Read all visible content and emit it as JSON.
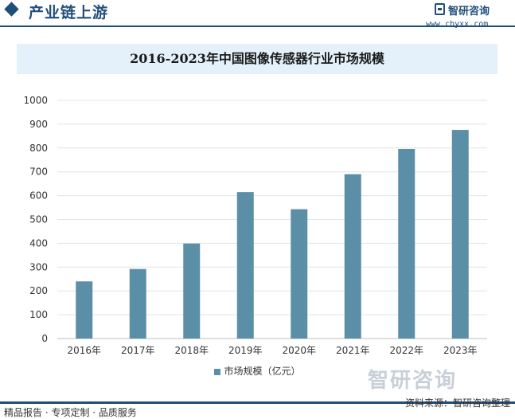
{
  "header": {
    "section_title": "产业链上游",
    "brand_name": "智研咨询",
    "brand_url": "www.chyxx.com"
  },
  "chart_data": {
    "type": "bar",
    "title": "2016-2023年中国图像传感器行业市场规模",
    "categories": [
      "2016年",
      "2017年",
      "2018年",
      "2019年",
      "2020年",
      "2021年",
      "2022年",
      "2023年"
    ],
    "series": [
      {
        "name": "市场规模（亿元）",
        "values": [
          240,
          292,
          399,
          615,
          543,
          690,
          796,
          876
        ]
      }
    ],
    "ylim": [
      0,
      1000
    ],
    "yticks": [
      0,
      100,
      200,
      300,
      400,
      500,
      600,
      700,
      800,
      900,
      1000
    ],
    "grid": true,
    "legend": "bottom",
    "color": "#5b8fa8"
  },
  "watermark": "智研咨询",
  "footer": {
    "left": "精品报告 · 专项定制 · 品质服务",
    "source": "资料来源：智研咨询整理"
  }
}
